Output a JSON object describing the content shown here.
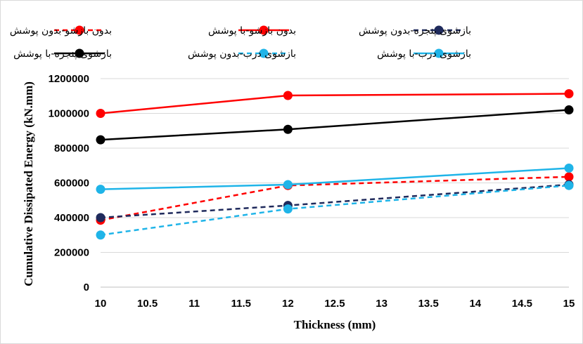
{
  "chart_data": {
    "type": "line",
    "xlabel": "Thickness (mm)",
    "ylabel": "Cumulative Dissipated Energy (kN.mm)",
    "xlim": [
      10,
      15
    ],
    "ylim": [
      0,
      1200000
    ],
    "x_ticks": [
      "10",
      "10.5",
      "11",
      "11.5",
      "12",
      "12.5",
      "13",
      "13.5",
      "14",
      "14.5",
      "15"
    ],
    "y_ticks": [
      "0",
      "200000",
      "400000",
      "600000",
      "800000",
      "1000000",
      "1200000"
    ],
    "grid": "horizontal",
    "legend_position": "top",
    "series": [
      {
        "name": "بدون بازشو-بدون پوشش",
        "x": [
          10,
          12,
          15
        ],
        "y": [
          385000,
          585000,
          635000
        ],
        "color": "#ff0000",
        "dash": true
      },
      {
        "name": "بدون بازشو-با پوشش",
        "x": [
          10,
          12,
          15
        ],
        "y": [
          1000000,
          1103000,
          1113000
        ],
        "color": "#ff0000",
        "dash": false
      },
      {
        "name": "بازشوی پنجره-بدون پوشش",
        "x": [
          10,
          12,
          15
        ],
        "y": [
          400000,
          470000,
          590000
        ],
        "color": "#1f2a5c",
        "dash": true
      },
      {
        "name": "بازشوی پنجره-با پوشش",
        "x": [
          10,
          12,
          15
        ],
        "y": [
          848000,
          908000,
          1020000
        ],
        "color": "#000000",
        "dash": false
      },
      {
        "name": "بازشوی درب-بدون پوشش",
        "x": [
          10,
          12,
          15
        ],
        "y": [
          300000,
          450000,
          585000
        ],
        "color": "#1fb4e8",
        "dash": true
      },
      {
        "name": "بازشوی درب-با پوشش",
        "x": [
          10,
          12,
          15
        ],
        "y": [
          563000,
          590000,
          685000
        ],
        "color": "#1fb4e8",
        "dash": false
      }
    ]
  }
}
